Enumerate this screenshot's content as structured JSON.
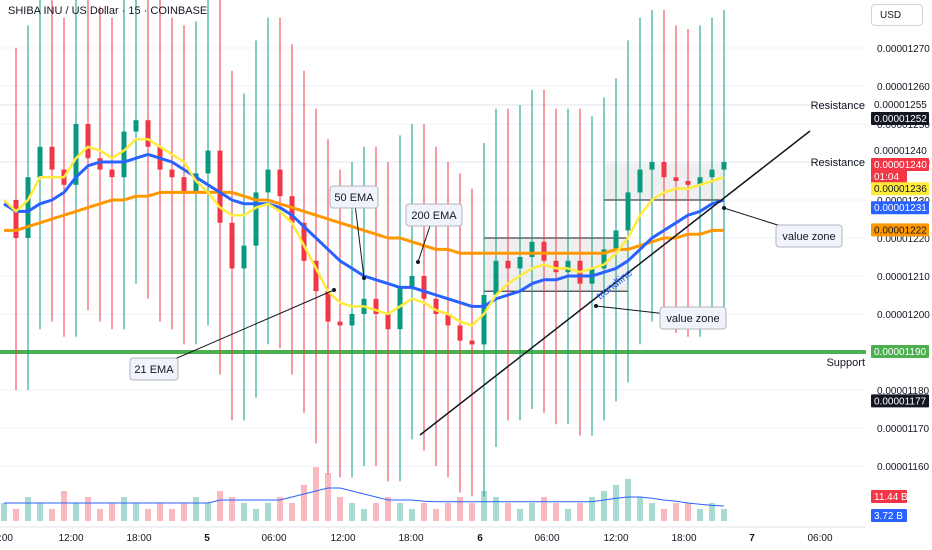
{
  "header": {
    "symbol_title": "SHIBA INU / US Dollar · 15 · COINBASE",
    "currency_button": "USD"
  },
  "colors": {
    "up": "#089981",
    "down": "#f23645",
    "ema21": "#ffeb3b",
    "ema50": "#2962ff",
    "ema200": "#ff9800",
    "resistance_line": "#ffffff",
    "support_line": "#4caf50",
    "volume_ma": "#2962ff"
  },
  "chart_data": {
    "type": "candlestick",
    "y_axis": {
      "range": [
        1.15e-05,
        1.28e-05
      ],
      "ticks": [
        "0.00001270",
        "0.00001260",
        "0.00001250",
        "0.00001240",
        "0.00001230",
        "0.00001220",
        "0.00001210",
        "0.00001200",
        "0.00001190",
        "0.00001180",
        "0.00001170",
        "0.00001160"
      ]
    },
    "x_axis": {
      "ticks": [
        {
          "label": ":00",
          "bold": false
        },
        {
          "label": "12:00",
          "bold": false
        },
        {
          "label": "18:00",
          "bold": false
        },
        {
          "label": "5",
          "bold": true
        },
        {
          "label": "06:00",
          "bold": false
        },
        {
          "label": "12:00",
          "bold": false
        },
        {
          "label": "18:00",
          "bold": false
        },
        {
          "label": "6",
          "bold": true
        },
        {
          "label": "06:00",
          "bold": false
        },
        {
          "label": "12:00",
          "bold": false
        },
        {
          "label": "18:00",
          "bold": false
        },
        {
          "label": "7",
          "bold": true
        },
        {
          "label": "06:00",
          "bold": false
        }
      ]
    },
    "close_path": [
      1.23e-05,
      1.22e-05,
      1.236e-05,
      1.244e-05,
      1.238e-05,
      1.234e-05,
      1.25e-05,
      1.241e-05,
      1.238e-05,
      1.236e-05,
      1.248e-05,
      1.251e-05,
      1.244e-05,
      1.238e-05,
      1.236e-05,
      1.232e-05,
      1.237e-05,
      1.243e-05,
      1.224e-05,
      1.212e-05,
      1.218e-05,
      1.232e-05,
      1.238e-05,
      1.231e-05,
      1.224e-05,
      1.214e-05,
      1.206e-05,
      1.198e-05,
      1.197e-05,
      1.2e-05,
      1.204e-05,
      1.2e-05,
      1.196e-05,
      1.207e-05,
      1.21e-05,
      1.204e-05,
      1.2e-05,
      1.197e-05,
      1.193e-05,
      1.192e-05,
      1.205e-05,
      1.214e-05,
      1.212e-05,
      1.215e-05,
      1.219e-05,
      1.214e-05,
      1.211e-05,
      1.214e-05,
      1.208e-05,
      1.212e-05,
      1.217e-05,
      1.222e-05,
      1.232e-05,
      1.238e-05,
      1.24e-05,
      1.236e-05,
      1.235e-05,
      1.234e-05,
      1.236e-05,
      1.238e-05,
      1.24e-05
    ],
    "ema21": [
      1.23e-05,
      1.227e-05,
      1.23e-05,
      1.236e-05,
      1.236e-05,
      1.236e-05,
      1.241e-05,
      1.244e-05,
      1.243e-05,
      1.241e-05,
      1.243e-05,
      1.246e-05,
      1.246e-05,
      1.244e-05,
      1.242e-05,
      1.24e-05,
      1.235e-05,
      1.232e-05,
      1.228e-05,
      1.226e-05,
      1.226e-05,
      1.228e-05,
      1.229e-05,
      1.227e-05,
      1.224e-05,
      1.218e-05,
      1.212e-05,
      1.206e-05,
      1.203e-05,
      1.202e-05,
      1.202e-05,
      1.201e-05,
      1.2e-05,
      1.202e-05,
      1.204e-05,
      1.203e-05,
      1.201e-05,
      1.2e-05,
      1.198e-05,
      1.197e-05,
      1.2e-05,
      1.205e-05,
      1.208e-05,
      1.21e-05,
      1.212e-05,
      1.213e-05,
      1.212e-05,
      1.212e-05,
      1.211e-05,
      1.212e-05,
      1.213e-05,
      1.216e-05,
      1.22e-05,
      1.226e-05,
      1.23e-05,
      1.232e-05,
      1.233e-05,
      1.233e-05,
      1.234e-05,
      1.235e-05,
      1.236e-05
    ],
    "ema50": [
      1.229e-05,
      1.227e-05,
      1.227e-05,
      1.229e-05,
      1.23e-05,
      1.232e-05,
      1.236e-05,
      1.239e-05,
      1.24e-05,
      1.24e-05,
      1.24e-05,
      1.241e-05,
      1.242e-05,
      1.241e-05,
      1.24e-05,
      1.238e-05,
      1.236e-05,
      1.234e-05,
      1.232e-05,
      1.23e-05,
      1.229e-05,
      1.229e-05,
      1.229e-05,
      1.228e-05,
      1.226e-05,
      1.223e-05,
      1.22e-05,
      1.217e-05,
      1.214e-05,
      1.212e-05,
      1.21e-05,
      1.209e-05,
      1.208e-05,
      1.207e-05,
      1.207e-05,
      1.206e-05,
      1.205e-05,
      1.204e-05,
      1.203e-05,
      1.202e-05,
      1.202e-05,
      1.204e-05,
      1.205e-05,
      1.206e-05,
      1.208e-05,
      1.209e-05,
      1.209e-05,
      1.21e-05,
      1.21e-05,
      1.21e-05,
      1.211e-05,
      1.212e-05,
      1.214e-05,
      1.217e-05,
      1.22e-05,
      1.222e-05,
      1.224e-05,
      1.226e-05,
      1.227e-05,
      1.229e-05,
      1.23e-05
    ],
    "ema200": [
      1.222e-05,
      1.222e-05,
      1.223e-05,
      1.224e-05,
      1.225e-05,
      1.226e-05,
      1.227e-05,
      1.228e-05,
      1.229e-05,
      1.23e-05,
      1.23e-05,
      1.231e-05,
      1.231e-05,
      1.232e-05,
      1.232e-05,
      1.232e-05,
      1.232e-05,
      1.232e-05,
      1.232e-05,
      1.232e-05,
      1.231e-05,
      1.23e-05,
      1.23e-05,
      1.229e-05,
      1.228e-05,
      1.227e-05,
      1.226e-05,
      1.225e-05,
      1.224e-05,
      1.223e-05,
      1.222e-05,
      1.221e-05,
      1.22e-05,
      1.22e-05,
      1.219e-05,
      1.218e-05,
      1.217e-05,
      1.217e-05,
      1.216e-05,
      1.216e-05,
      1.216e-05,
      1.216e-05,
      1.216e-05,
      1.216e-05,
      1.216e-05,
      1.216e-05,
      1.216e-05,
      1.216e-05,
      1.216e-05,
      1.216e-05,
      1.216e-05,
      1.217e-05,
      1.217e-05,
      1.218e-05,
      1.219e-05,
      1.22e-05,
      1.22e-05,
      1.221e-05,
      1.221e-05,
      1.222e-05,
      1.222e-05
    ],
    "volume": [
      3,
      2,
      4,
      3,
      2,
      5,
      3,
      4,
      2,
      3,
      4,
      3,
      2,
      3,
      2,
      3,
      4,
      3,
      5,
      4,
      3,
      2,
      3,
      4,
      3,
      6,
      9,
      8,
      4,
      3,
      2,
      3,
      4,
      3,
      2,
      3,
      2,
      3,
      4,
      3,
      5,
      4,
      3,
      2,
      3,
      4,
      3,
      2,
      3,
      4,
      5,
      6,
      7,
      4,
      3,
      2,
      3,
      3,
      2,
      3,
      2
    ],
    "volume_ma": [
      3,
      3,
      3,
      3,
      3,
      3,
      3,
      3,
      3,
      3,
      3,
      3,
      3,
      3,
      3,
      3,
      3,
      3,
      3.5,
      3.5,
      3.5,
      3.5,
      3.5,
      3.5,
      4,
      4.5,
      5,
      5.5,
      5.5,
      5,
      4.5,
      4,
      3.5,
      3.5,
      3.5,
      3.3,
      3.2,
      3.2,
      3.2,
      3.2,
      3.2,
      3.2,
      3.2,
      3.2,
      3.2,
      3.2,
      3.2,
      3.2,
      3.2,
      3.2,
      3.5,
      3.8,
      4,
      4,
      3.8,
      3.5,
      3.3,
      3,
      2.8,
      2.6,
      2.5
    ],
    "levels": [
      {
        "name": "Resistance",
        "value": 1.255e-05,
        "color": "#ffffff",
        "label": "Resistance"
      },
      {
        "name": "Resistance",
        "value": 1.24e-05,
        "color": "#ffffff",
        "label": "Resistance"
      },
      {
        "name": "Support",
        "value": 1.19e-05,
        "color": "#4caf50",
        "label": "Support"
      }
    ],
    "annotations": {
      "ema21_label": "21 EMA",
      "ema50_label": "50 EMA",
      "ema200_label": "200 EMA",
      "value_zone_1": "value zone",
      "value_zone_2": "value zone",
      "trendline_label": "trendline"
    },
    "price_badges": [
      {
        "text": "0.00001255",
        "bg": "#ffffff",
        "fg": "#131722"
      },
      {
        "text": "0.00001252",
        "bg": "#131722",
        "fg": "#ffffff"
      },
      {
        "text": "0.00001240",
        "bg": "#ffffff",
        "fg": "#131722"
      },
      {
        "text": "0.00001240",
        "bg": "#f23645",
        "fg": "#ffffff"
      },
      {
        "text": "01:04",
        "bg": "#f23645",
        "fg": "#ffffff"
      },
      {
        "text": "0.00001236",
        "bg": "#ffeb3b",
        "fg": "#131722"
      },
      {
        "text": "0.00001231",
        "bg": "#2962ff",
        "fg": "#ffffff"
      },
      {
        "text": "0.00001222",
        "bg": "#ff9800",
        "fg": "#131722"
      },
      {
        "text": "0.00001190",
        "bg": "#4caf50",
        "fg": "#ffffff"
      },
      {
        "text": "0.00001177",
        "bg": "#131722",
        "fg": "#ffffff"
      },
      {
        "text": "11.44 B",
        "bg": "#f23645",
        "fg": "#ffffff"
      },
      {
        "text": "3.72 B",
        "bg": "#2962ff",
        "fg": "#ffffff"
      }
    ]
  }
}
